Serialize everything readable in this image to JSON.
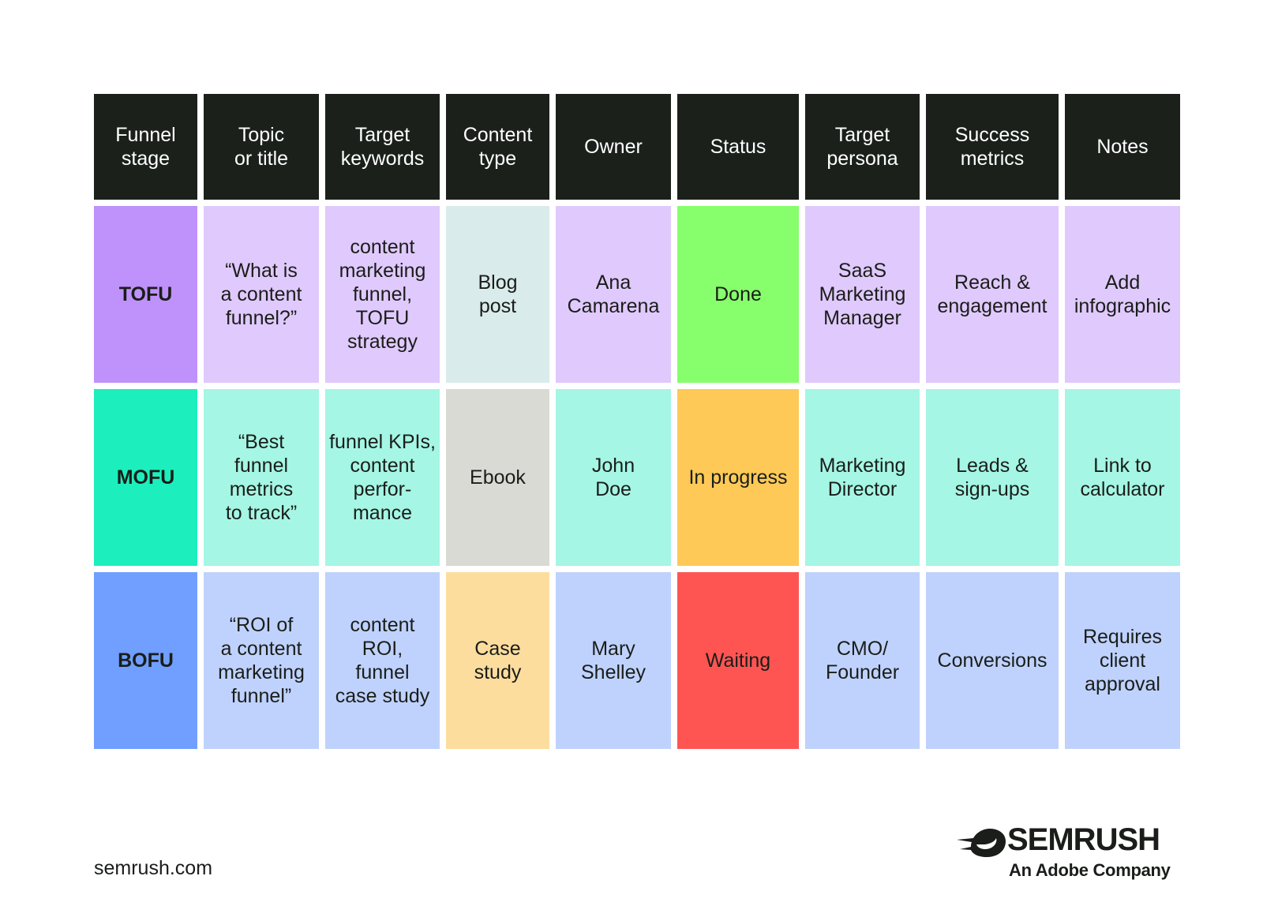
{
  "colors": {
    "header_bg": "#1b201b",
    "tofu_stage": "#bf91fb",
    "tofu_cell": "#e0c9fc",
    "mofu_stage": "#1cefbd",
    "mofu_cell": "#a5f6e4",
    "bofu_stage": "#709fff",
    "bofu_cell": "#bfd2fd",
    "blog_post": "#d9ebea",
    "ebook": "#dadad4",
    "case_study": "#fddd9e",
    "status_done": "#87fe6c",
    "status_in_progress": "#fec957",
    "status_waiting": "#fe5553"
  },
  "table": {
    "headers": [
      "Funnel\nstage",
      "Topic\nor title",
      "Target\nkeywords",
      "Content\ntype",
      "Owner",
      "Status",
      "Target\npersona",
      "Success\nmetrics",
      "Notes"
    ],
    "rows": [
      {
        "cells": [
          "TOFU",
          "“What is\na content\nfunnel?”",
          "content\nmarketing\nfunnel,\nTOFU\nstrategy",
          "Blog\npost",
          "Ana\nCamarena",
          "Done",
          "SaaS\nMarketing\nManager",
          "Reach &\nengagement",
          "Add\ninfographic"
        ]
      },
      {
        "cells": [
          "MOFU",
          "“Best\nfunnel\nmetrics\nto track”",
          "funnel KPIs,\ncontent\nperfor-\nmance",
          "Ebook",
          "John\nDoe",
          "In progress",
          "Marketing\nDirector",
          "Leads &\nsign-ups",
          "Link to\ncalculator"
        ]
      },
      {
        "cells": [
          "BOFU",
          "“ROI of\na content\nmarketing\nfunnel”",
          "content\nROI,\nfunnel\ncase study",
          "Case\nstudy",
          "Mary\nShelley",
          "Waiting",
          "CMO/\nFounder",
          "Conversions",
          "Requires\nclient\napproval"
        ]
      }
    ]
  },
  "footer": {
    "url": "semrush.com",
    "brand": "SEMRUSH",
    "tagline": "An Adobe Company",
    "logo_icon": "semrush-fireball-icon"
  }
}
